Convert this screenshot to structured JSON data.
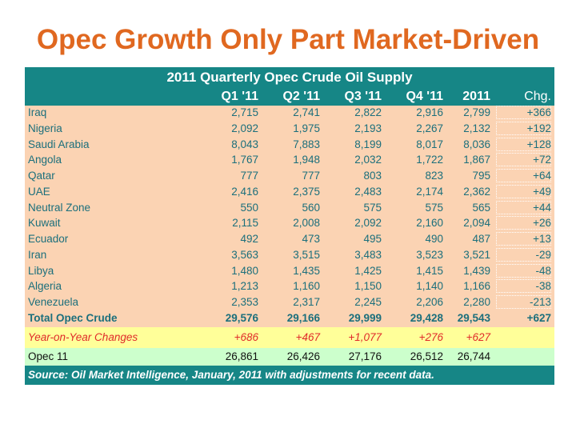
{
  "title": "Opec Growth Only Part Market-Driven",
  "table": {
    "title": "2011 Quarterly Opec Crude Oil Supply",
    "columns": [
      "Q1 '11",
      "Q2 '11",
      "Q3 '11",
      "Q4 '11",
      "2011",
      "Chg."
    ],
    "rows": [
      [
        "Iraq",
        "2,715",
        "2,741",
        "2,822",
        "2,916",
        "2,799",
        "+366"
      ],
      [
        "Nigeria",
        "2,092",
        "1,975",
        "2,193",
        "2,267",
        "2,132",
        "+192"
      ],
      [
        "Saudi Arabia",
        "8,043",
        "7,883",
        "8,199",
        "8,017",
        "8,036",
        "+128"
      ],
      [
        "Angola",
        "1,767",
        "1,948",
        "2,032",
        "1,722",
        "1,867",
        "+72"
      ],
      [
        "Qatar",
        "777",
        "777",
        "803",
        "823",
        "795",
        "+64"
      ],
      [
        "UAE",
        "2,416",
        "2,375",
        "2,483",
        "2,174",
        "2,362",
        "+49"
      ],
      [
        "Neutral Zone",
        "550",
        "560",
        "575",
        "575",
        "565",
        "+44"
      ],
      [
        "Kuwait",
        "2,115",
        "2,008",
        "2,092",
        "2,160",
        "2,094",
        "+26"
      ],
      [
        "Ecuador",
        "492",
        "473",
        "495",
        "490",
        "487",
        "+13"
      ],
      [
        "Iran",
        "3,563",
        "3,515",
        "3,483",
        "3,523",
        "3,521",
        "-29"
      ],
      [
        "Libya",
        "1,480",
        "1,435",
        "1,425",
        "1,415",
        "1,439",
        "-48"
      ],
      [
        "Algeria",
        "1,213",
        "1,160",
        "1,150",
        "1,140",
        "1,166",
        "-38"
      ],
      [
        "Venezuela",
        "2,353",
        "2,317",
        "2,245",
        "2,206",
        "2,280",
        "-213"
      ]
    ],
    "total": [
      "Total Opec Crude",
      "29,576",
      "29,166",
      "29,999",
      "29,428",
      "29,543",
      "+627"
    ],
    "yoy": [
      "Year-on-Year Changes",
      "+686",
      "+467",
      "+1,077",
      "+276",
      "+627"
    ],
    "opec11": [
      "Opec 11",
      "26,861",
      "26,426",
      "27,176",
      "26,512",
      "26,744"
    ],
    "source": "Source: Oil Market Intelligence, January, 2011 with adjustments for recent data."
  }
}
